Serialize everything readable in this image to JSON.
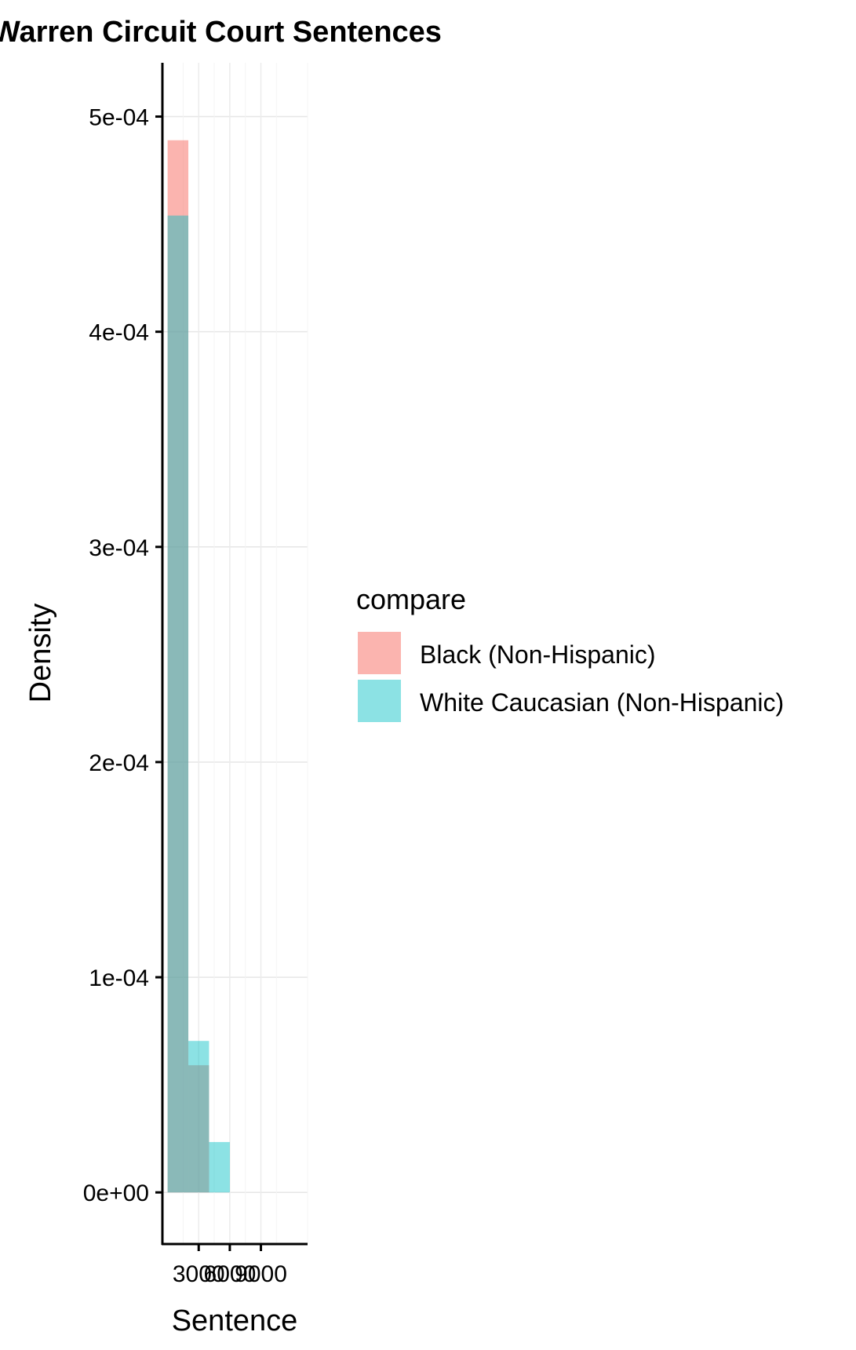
{
  "chart_data": {
    "type": "bar",
    "title": "Warren Circuit Court Sentences",
    "xlabel": "Sentence",
    "ylabel": "Density",
    "xlim": [
      -500,
      13500
    ],
    "ylim": [
      -2.4e-05,
      0.000525
    ],
    "x_ticks": [
      3000,
      6000,
      9000
    ],
    "x_tick_labels": [
      "3000",
      "6000",
      "9000"
    ],
    "y_ticks": [
      0,
      0.0001,
      0.0002,
      0.0003,
      0.0004,
      0.0005
    ],
    "y_tick_labels": [
      "0e+00",
      "1e-04",
      "2e-04",
      "3e-04",
      "4e-04",
      "5e-04"
    ],
    "grid": true,
    "bin_width": 2000,
    "bins": [
      {
        "x0": 0,
        "x1": 2000
      },
      {
        "x0": 2000,
        "x1": 4000
      },
      {
        "x0": 4000,
        "x1": 6000
      }
    ],
    "series": [
      {
        "name": "Black (Non-Hispanic)",
        "color": "#F8766D",
        "values": [
          0.000489,
          5.91e-05,
          0
        ]
      },
      {
        "name": "White Caucasian (Non-Hispanic)",
        "color": "#00BFC4",
        "values": [
          0.000454,
          7.04e-05,
          2.34e-05
        ]
      }
    ],
    "legend": {
      "title": "compare",
      "position": "right"
    }
  }
}
